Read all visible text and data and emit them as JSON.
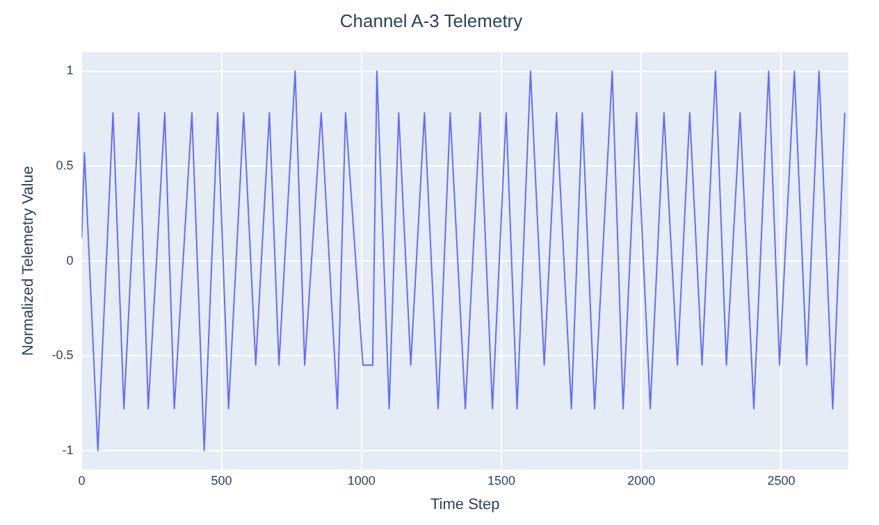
{
  "chart_data": {
    "type": "line",
    "title": "Channel A-3 Telemetry",
    "xlabel": "Time Step",
    "ylabel": "Normalized Telemetry Value",
    "xlim": [
      0,
      2740
    ],
    "xticks": [
      0,
      500,
      1000,
      1500,
      2000,
      2500
    ],
    "ylim": [
      -1.1,
      1.1
    ],
    "yticks": [
      -1,
      -0.5,
      0,
      0.5,
      1
    ],
    "grid": true,
    "legend": false,
    "marker": "none",
    "line_style": "solid",
    "series": [
      {
        "color": "#636efa",
        "x": [
          0,
          10,
          58,
          112,
          151,
          204,
          238,
          297,
          331,
          394,
          438,
          486,
          525,
          579,
          622,
          671,
          705,
          763,
          797,
          856,
          914,
          943,
          1005,
          1040,
          1055,
          1099,
          1133,
          1176,
          1225,
          1274,
          1317,
          1371,
          1424,
          1468,
          1517,
          1556,
          1604,
          1653,
          1697,
          1750,
          1789,
          1833,
          1896,
          1935,
          1983,
          2032,
          2081,
          2129,
          2173,
          2217,
          2265,
          2304,
          2353,
          2402,
          2455,
          2494,
          2547,
          2591,
          2635,
          2684,
          2727
        ],
        "values": [
          0.12,
          0.57,
          -1,
          0.78,
          -0.78,
          0.78,
          -0.78,
          0.78,
          -0.78,
          0.78,
          -1,
          0.78,
          -0.78,
          0.78,
          -0.55,
          0.78,
          -0.55,
          1,
          -0.55,
          0.78,
          -0.78,
          0.78,
          -0.55,
          -0.55,
          1,
          -0.78,
          0.78,
          -0.55,
          0.78,
          -0.78,
          0.78,
          -0.78,
          0.78,
          -0.78,
          0.78,
          -0.78,
          1,
          -0.55,
          0.78,
          -0.78,
          0.78,
          -0.78,
          1,
          -0.78,
          0.78,
          -0.78,
          0.78,
          -0.55,
          0.78,
          -0.55,
          1,
          -0.55,
          0.78,
          -0.78,
          1,
          -0.55,
          1,
          -0.55,
          1,
          -0.78,
          0.78
        ]
      }
    ]
  }
}
